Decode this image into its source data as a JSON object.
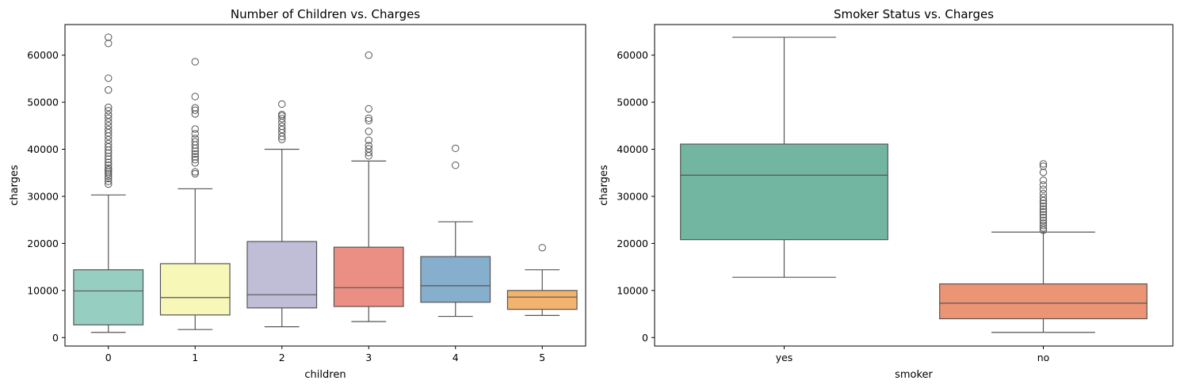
{
  "chart_data": [
    {
      "type": "box",
      "title": "Number of Children vs. Charges",
      "xlabel": "children",
      "ylabel": "charges",
      "ylim": [
        -1800,
        66500
      ],
      "yticks": [
        0,
        10000,
        20000,
        30000,
        40000,
        50000,
        60000
      ],
      "ytick_labels": [
        "0",
        "10000",
        "20000",
        "30000",
        "40000",
        "50000",
        "60000"
      ],
      "categories": [
        "0",
        "1",
        "2",
        "3",
        "4",
        "5"
      ],
      "colors": [
        "#96cfc1",
        "#f7f7b8",
        "#c0bdd7",
        "#eb8e84",
        "#86aecd",
        "#f2b36f"
      ],
      "boxes": [
        {
          "category": "0",
          "whislo": 1100,
          "q1": 2700,
          "med": 9900,
          "q3": 14400,
          "whishi": 30300,
          "fliers": [
            32600,
            33200,
            33800,
            34300,
            34800,
            35200,
            35600,
            36000,
            36600,
            37200,
            37900,
            38500,
            39200,
            39800,
            40500,
            41200,
            42000,
            42800,
            43500,
            44200,
            45000,
            45800,
            46600,
            47300,
            48200,
            48900,
            52600,
            55100,
            62500,
            63800
          ]
        },
        {
          "category": "1",
          "whislo": 1700,
          "q1": 4800,
          "med": 8500,
          "q3": 15700,
          "whishi": 31600,
          "fliers": [
            34800,
            35200,
            37100,
            37800,
            38400,
            39000,
            39600,
            40200,
            40900,
            41600,
            42300,
            43300,
            44300,
            47500,
            48300,
            48800,
            51200,
            58600
          ]
        },
        {
          "category": "2",
          "whislo": 2300,
          "q1": 6300,
          "med": 9100,
          "q3": 20400,
          "whishi": 40000,
          "fliers": [
            42100,
            42700,
            43500,
            44200,
            44900,
            45700,
            46500,
            47100,
            47400,
            49600
          ]
        },
        {
          "category": "3",
          "whislo": 3400,
          "q1": 6600,
          "med": 10600,
          "q3": 19200,
          "whishi": 37500,
          "fliers": [
            38600,
            39300,
            40100,
            40800,
            41900,
            43800,
            46100,
            46600,
            48600,
            60000
          ]
        },
        {
          "category": "4",
          "whislo": 4500,
          "q1": 7500,
          "med": 11000,
          "q3": 17200,
          "whishi": 24600,
          "fliers": [
            36600,
            40200
          ]
        },
        {
          "category": "5",
          "whislo": 4700,
          "q1": 6000,
          "med": 8600,
          "q3": 10000,
          "whishi": 14400,
          "fliers": [
            19100
          ]
        }
      ]
    },
    {
      "type": "box",
      "title": "Smoker Status vs. Charges",
      "xlabel": "smoker",
      "ylabel": "charges",
      "ylim": [
        -1800,
        66500
      ],
      "yticks": [
        0,
        10000,
        20000,
        30000,
        40000,
        50000,
        60000
      ],
      "ytick_labels": [
        "0",
        "10000",
        "20000",
        "30000",
        "40000",
        "50000",
        "60000"
      ],
      "categories": [
        "yes",
        "no"
      ],
      "colors": [
        "#72b6a1",
        "#eb9574"
      ],
      "boxes": [
        {
          "category": "yes",
          "whislo": 12800,
          "q1": 20800,
          "med": 34500,
          "q3": 41100,
          "whishi": 63800,
          "fliers": []
        },
        {
          "category": "no",
          "whislo": 1100,
          "q1": 4000,
          "med": 7300,
          "q3": 11400,
          "whishi": 22400,
          "fliers": [
            22800,
            23300,
            23800,
            24300,
            24900,
            25500,
            26100,
            26700,
            27300,
            27900,
            28500,
            29100,
            29800,
            30600,
            31500,
            32400,
            33400,
            35100,
            36400,
            36900
          ]
        }
      ]
    }
  ]
}
